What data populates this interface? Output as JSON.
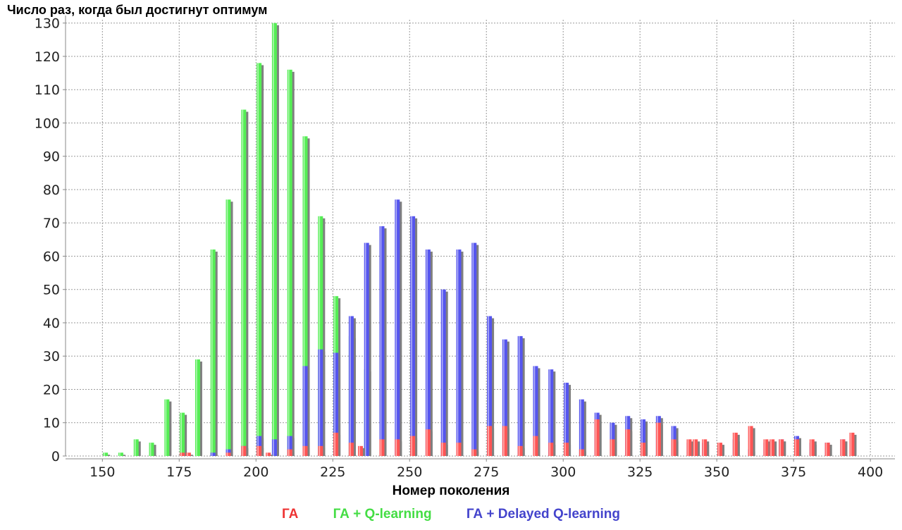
{
  "chart_data": {
    "type": "bar",
    "ylabel": "Число раз, когда был достигнут оптимум",
    "xlabel": "Номер поколения",
    "xlim": [
      138,
      408
    ],
    "ylim": [
      0,
      131
    ],
    "xticks": [
      150,
      175,
      200,
      225,
      250,
      275,
      300,
      325,
      350,
      375,
      400
    ],
    "yticks": [
      0,
      10,
      20,
      30,
      40,
      50,
      60,
      70,
      80,
      90,
      100,
      110,
      120,
      130
    ],
    "grid": true,
    "legend_position": "bottom",
    "series": [
      {
        "name": "ГА + Q-learning",
        "color": "#55ee55",
        "x": [
          151,
          156,
          161,
          166,
          171,
          176,
          181,
          186,
          191,
          196,
          201,
          206,
          211,
          216,
          221,
          226,
          231,
          236,
          241
        ],
        "values": [
          1,
          1,
          5,
          4,
          17,
          13,
          29,
          62,
          77,
          104,
          118,
          130,
          116,
          96,
          72,
          48,
          36,
          26,
          17
        ]
      },
      {
        "name": "ГА + Delayed Q-learning",
        "color": "#5555ee",
        "x": [
          186,
          191,
          196,
          201,
          206,
          211,
          216,
          221,
          226,
          231,
          236,
          241,
          246,
          251,
          256,
          261,
          266,
          271,
          276,
          281,
          286,
          291,
          296,
          301,
          306,
          311,
          316,
          321,
          326,
          331,
          336,
          341,
          346,
          351,
          356,
          361,
          366,
          371,
          376,
          381,
          386,
          391
        ],
        "values": [
          1,
          2,
          3,
          6,
          5,
          6,
          27,
          32,
          31,
          42,
          64,
          69,
          77,
          72,
          62,
          50,
          62,
          64,
          42,
          35,
          36,
          27,
          26,
          22,
          17,
          13,
          10,
          12,
          11,
          12,
          9,
          4,
          4,
          3,
          5,
          2,
          4,
          5,
          6,
          4,
          4,
          5
        ]
      },
      {
        "name": "ГА",
        "color": "#ff5555",
        "x": [
          176,
          178,
          191,
          196,
          201,
          204,
          211,
          216,
          221,
          226,
          231,
          234,
          241,
          246,
          251,
          256,
          261,
          266,
          271,
          276,
          281,
          286,
          291,
          296,
          301,
          306,
          311,
          316,
          321,
          326,
          331,
          336,
          341,
          343,
          346,
          351,
          356,
          361,
          366,
          368,
          371,
          376,
          381,
          386,
          391,
          394
        ],
        "values": [
          1,
          1,
          1,
          3,
          3,
          1,
          2,
          3,
          3,
          7,
          4,
          3,
          5,
          5,
          6,
          8,
          4,
          4,
          2,
          9,
          9,
          3,
          6,
          4,
          4,
          2,
          11,
          5,
          8,
          4,
          10,
          5,
          5,
          5,
          5,
          4,
          7,
          9,
          5,
          5,
          5,
          5,
          5,
          4,
          5,
          7
        ]
      }
    ]
  },
  "legend": {
    "items": [
      {
        "label": "ГА",
        "color": "#ee3333"
      },
      {
        "label": "ГА + Q-learning",
        "color": "#44dd44"
      },
      {
        "label": "ГА + Delayed Q-learning",
        "color": "#4444cc"
      }
    ]
  }
}
